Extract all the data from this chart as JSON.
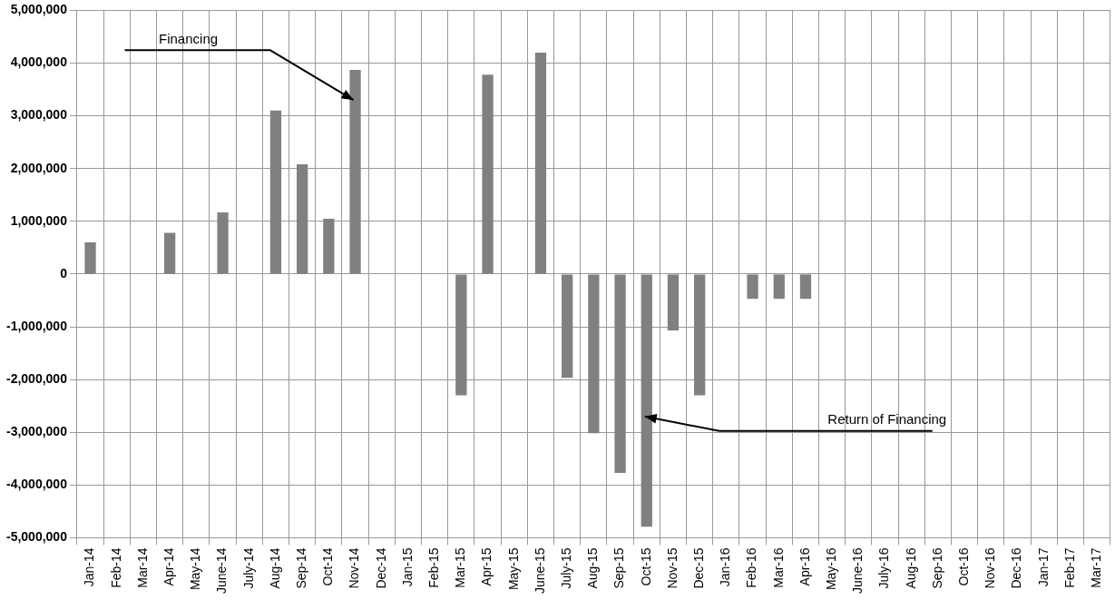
{
  "chart_data": {
    "type": "bar",
    "categories": [
      "Jan-14",
      "Feb-14",
      "Mar-14",
      "Apr-14",
      "May-14",
      "June-14",
      "July-14",
      "Aug-14",
      "Sep-14",
      "Oct-14",
      "Nov-14",
      "Dec-14",
      "Jan-15",
      "Feb-15",
      "Mar-15",
      "Apr-15",
      "May-15",
      "June-15",
      "July-15",
      "Aug-15",
      "Sep-15",
      "Oct-15",
      "Nov-15",
      "Dec-15",
      "Jan-16",
      "Feb-16",
      "Mar-16",
      "Apr-16",
      "May-16",
      "June-16",
      "July-16",
      "Aug-16",
      "Sep-16",
      "Oct-16",
      "Nov-16",
      "Dec-16",
      "Jan-17",
      "Feb-17",
      "Mar-17"
    ],
    "values": [
      600000,
      null,
      null,
      780000,
      null,
      1170000,
      null,
      3100000,
      2080000,
      1050000,
      3870000,
      null,
      null,
      null,
      -2300000,
      3780000,
      null,
      4200000,
      -1970000,
      -3020000,
      -3770000,
      -4790000,
      -1070000,
      -2300000,
      null,
      -470000,
      -470000,
      -470000,
      null,
      null,
      null,
      null,
      null,
      null,
      null,
      null,
      null,
      null,
      null
    ],
    "color": "#808080",
    "ylim": [
      -5000000,
      5000000
    ],
    "yticks": [
      {
        "value": -5000000,
        "label": "-5,000,000"
      },
      {
        "value": -4000000,
        "label": "-4,000,000"
      },
      {
        "value": -3000000,
        "label": "-3,000,000"
      },
      {
        "value": -2000000,
        "label": "-2,000,000"
      },
      {
        "value": -1000000,
        "label": "-1,000,000"
      },
      {
        "value": 0,
        "label": "0"
      },
      {
        "value": 1000000,
        "label": "1,000,000"
      },
      {
        "value": 2000000,
        "label": "2,000,000"
      },
      {
        "value": 3000000,
        "label": "3,000,000"
      },
      {
        "value": 4000000,
        "label": "4,000,000"
      },
      {
        "value": 5000000,
        "label": "5,000,000"
      }
    ],
    "grid": true,
    "annotations": [
      {
        "text": "Financing",
        "x": "Nov-14",
        "y": 3300000
      },
      {
        "text": "Return of Financing",
        "x": "Oct-15",
        "y": -2700000
      }
    ]
  }
}
